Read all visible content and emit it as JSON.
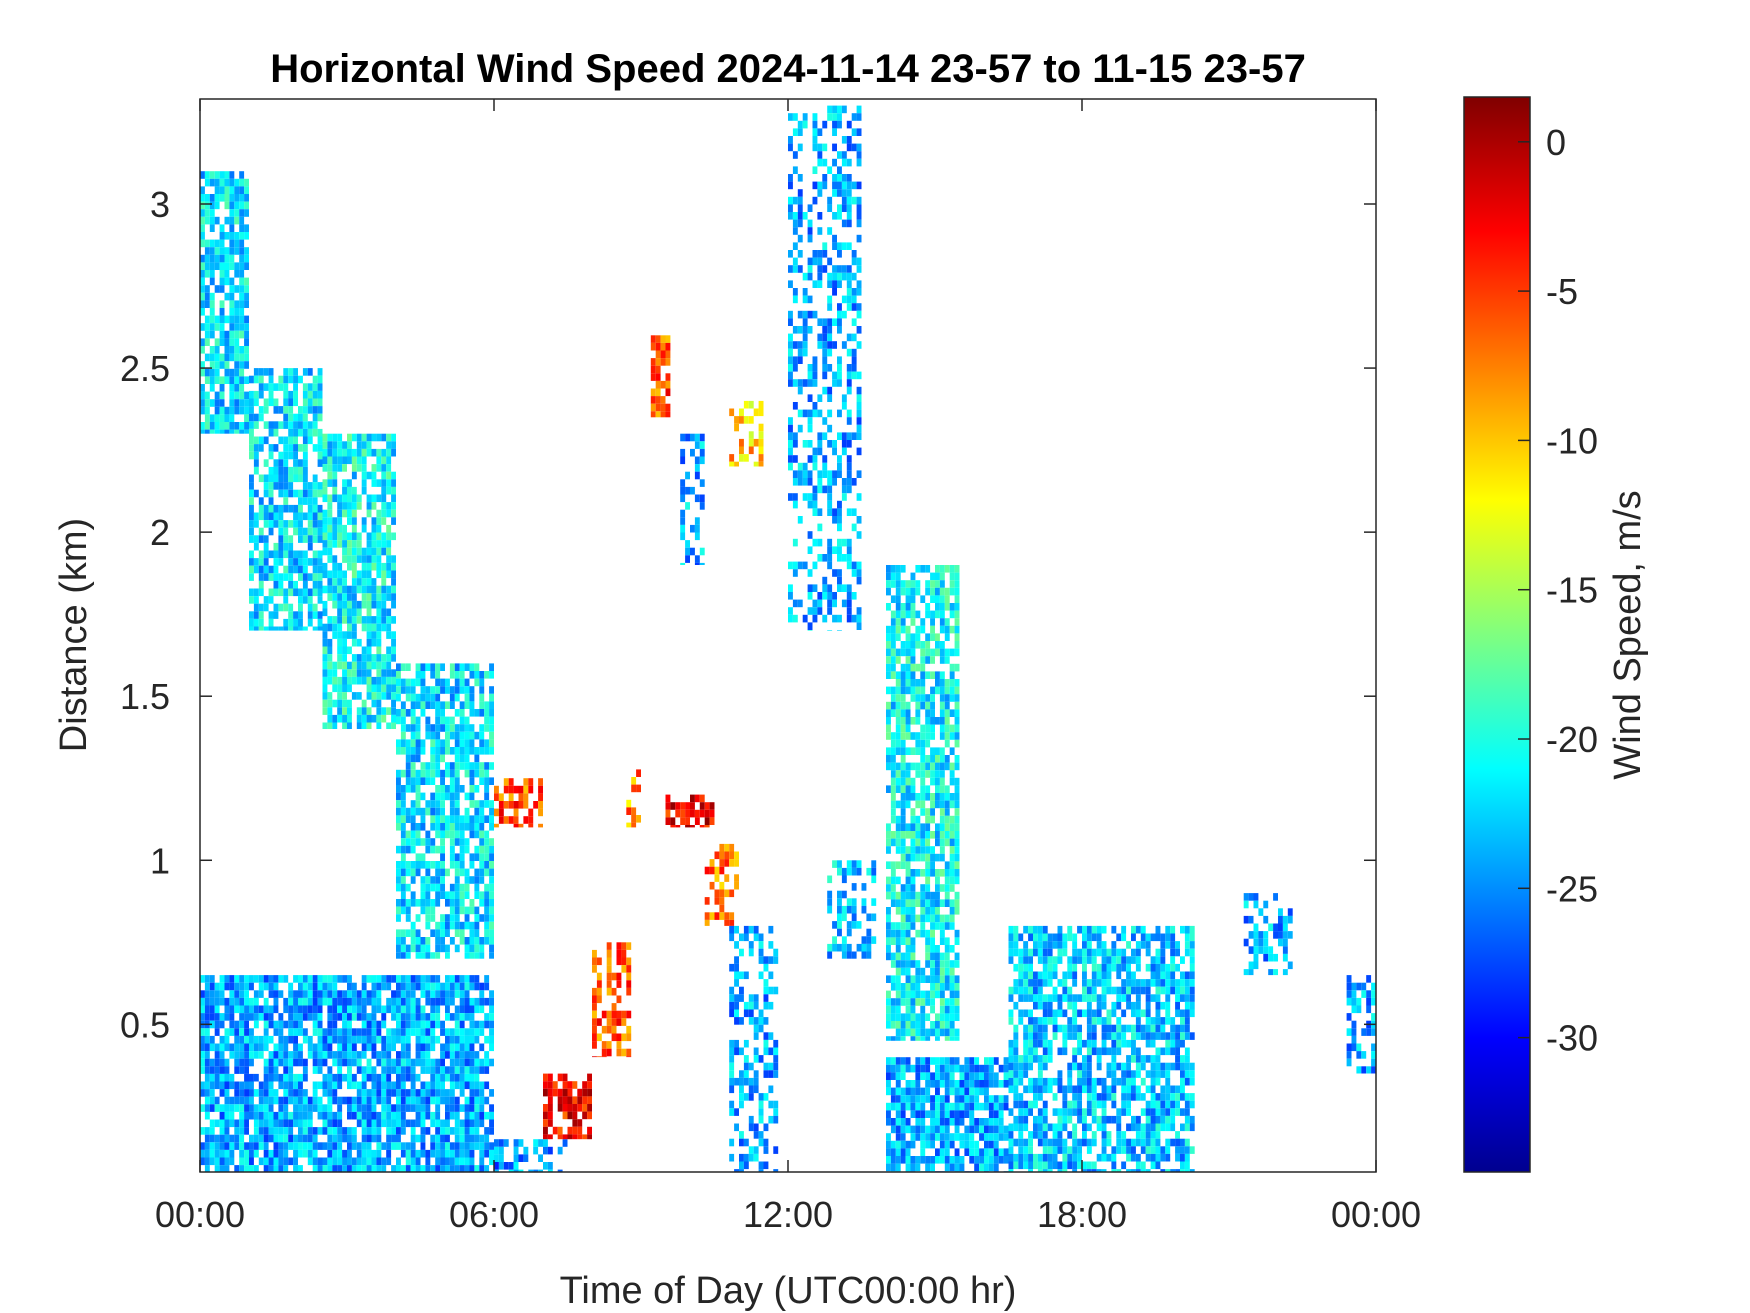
{
  "chart_data": {
    "type": "heatmap",
    "title": "Horizontal Wind Speed 2024-11-14 23-57 to 11-15 23-57",
    "xlabel": "Time of Day (UTC00:00 hr)",
    "ylabel": "Distance (km)",
    "xlim_hours": [
      0,
      24
    ],
    "ylim_km": [
      0.05,
      3.32
    ],
    "x_ticks": [
      {
        "value": 0,
        "label": "00:00"
      },
      {
        "value": 6,
        "label": "06:00"
      },
      {
        "value": 12,
        "label": "12:00"
      },
      {
        "value": 18,
        "label": "18:00"
      },
      {
        "value": 24,
        "label": "00:00"
      }
    ],
    "y_ticks": [
      {
        "value": 0.5,
        "label": "0.5"
      },
      {
        "value": 1.0,
        "label": "1"
      },
      {
        "value": 1.5,
        "label": "1.5"
      },
      {
        "value": 2.0,
        "label": "2"
      },
      {
        "value": 2.5,
        "label": "2.5"
      },
      {
        "value": 3.0,
        "label": "3"
      }
    ],
    "colorbar": {
      "label": "Wind Speed, m/s",
      "colormap": "jet",
      "range": [
        -34.5,
        1.5
      ],
      "ticks": [
        {
          "value": 0,
          "label": "0"
        },
        {
          "value": -5,
          "label": "-5"
        },
        {
          "value": -10,
          "label": "-10"
        },
        {
          "value": -15,
          "label": "-15"
        },
        {
          "value": -20,
          "label": "-20"
        },
        {
          "value": -25,
          "label": "-25"
        },
        {
          "value": -30,
          "label": "-30"
        }
      ]
    },
    "grid": false,
    "regions": [
      {
        "t": [
          0.0,
          6.0
        ],
        "d": [
          0.05,
          0.65
        ],
        "v": -24,
        "dens": 0.85
      },
      {
        "t": [
          6.0,
          7.5
        ],
        "d": [
          0.05,
          0.15
        ],
        "v": -25,
        "dens": 0.4
      },
      {
        "t": [
          7.0,
          8.0
        ],
        "d": [
          0.15,
          0.35
        ],
        "v": -3,
        "dens": 0.8
      },
      {
        "t": [
          8.0,
          8.8
        ],
        "d": [
          0.4,
          0.75
        ],
        "v": -6,
        "dens": 0.6
      },
      {
        "t": [
          0.0,
          1.0
        ],
        "d": [
          2.3,
          3.1
        ],
        "v": -22,
        "dens": 0.8
      },
      {
        "t": [
          1.0,
          2.5
        ],
        "d": [
          1.7,
          2.5
        ],
        "v": -22,
        "dens": 0.75
      },
      {
        "t": [
          2.5,
          4.0
        ],
        "d": [
          1.4,
          2.3
        ],
        "v": -21,
        "dens": 0.8
      },
      {
        "t": [
          4.0,
          6.0
        ],
        "d": [
          0.7,
          1.6
        ],
        "v": -22,
        "dens": 0.75
      },
      {
        "t": [
          6.0,
          7.0
        ],
        "d": [
          1.1,
          1.25
        ],
        "v": -6,
        "dens": 0.6
      },
      {
        "t": [
          8.7,
          9.0
        ],
        "d": [
          1.1,
          1.3
        ],
        "v": -8,
        "dens": 0.5
      },
      {
        "t": [
          9.5,
          10.5
        ],
        "d": [
          1.1,
          1.2
        ],
        "v": -3,
        "dens": 0.6
      },
      {
        "t": [
          10.3,
          11.0
        ],
        "d": [
          0.8,
          1.05
        ],
        "v": -7,
        "dens": 0.6
      },
      {
        "t": [
          9.2,
          9.6
        ],
        "d": [
          2.35,
          2.6
        ],
        "v": -6,
        "dens": 0.85
      },
      {
        "t": [
          9.8,
          10.3
        ],
        "d": [
          1.9,
          2.3
        ],
        "v": -24,
        "dens": 0.5
      },
      {
        "t": [
          10.8,
          11.5
        ],
        "d": [
          2.2,
          2.4
        ],
        "v": -10,
        "dens": 0.5
      },
      {
        "t": [
          10.8,
          11.8
        ],
        "d": [
          0.05,
          0.8
        ],
        "v": -24,
        "dens": 0.5
      },
      {
        "t": [
          12.0,
          13.5
        ],
        "d": [
          1.7,
          3.3
        ],
        "v": -24,
        "dens": 0.45
      },
      {
        "t": [
          12.8,
          13.8
        ],
        "d": [
          0.7,
          1.0
        ],
        "v": -23,
        "dens": 0.5
      },
      {
        "t": [
          14.0,
          15.5
        ],
        "d": [
          0.45,
          1.9
        ],
        "v": -21,
        "dens": 0.8
      },
      {
        "t": [
          14.0,
          16.5
        ],
        "d": [
          0.05,
          0.4
        ],
        "v": -24,
        "dens": 0.8
      },
      {
        "t": [
          16.5,
          20.3
        ],
        "d": [
          0.05,
          0.8
        ],
        "v": -23,
        "dens": 0.75
      },
      {
        "t": [
          21.3,
          22.3
        ],
        "d": [
          0.65,
          0.9
        ],
        "v": -24,
        "dens": 0.55
      },
      {
        "t": [
          23.4,
          24.0
        ],
        "d": [
          0.35,
          0.65
        ],
        "v": -24,
        "dens": 0.55
      }
    ]
  }
}
